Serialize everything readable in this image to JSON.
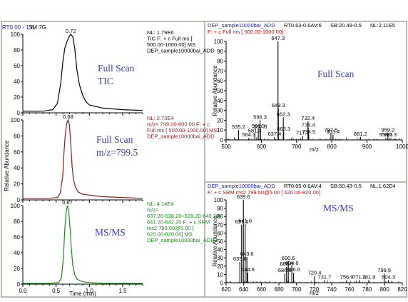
{
  "header": {
    "rt_range": "RT0.00 - 1.8",
    "sm": "SM:7G"
  },
  "colors": {
    "tic": "#000000",
    "xic": "#8b1c1c",
    "srm": "#1e8a1e",
    "annotation": "#3340b0",
    "spec_header": "#1a1aa8",
    "spec_filter": "#cc0000",
    "panel_border": "#9aaa9a"
  },
  "annotations": {
    "tic": [
      "Full Scan",
      "TIC"
    ],
    "xic": [
      "Full Scan",
      "m/z=799.5"
    ],
    "srm": [
      "MS/MS"
    ],
    "spectrum1": "Full Scan",
    "spectrum2": "MS/MS"
  },
  "chart_data": [
    {
      "type": "line",
      "panel": "tic",
      "x": [
        0.0,
        0.3,
        0.45,
        0.52,
        0.57,
        0.6,
        0.63,
        0.66,
        0.69,
        0.72,
        0.75,
        0.78,
        0.81,
        0.85,
        0.9,
        0.95,
        1.0,
        1.2,
        1.5,
        1.8
      ],
      "y": [
        2,
        2,
        4,
        12,
        38,
        64,
        82,
        90,
        96,
        100,
        97,
        82,
        56,
        36,
        22,
        14,
        10,
        6,
        4,
        3
      ],
      "peak_label": "0.72",
      "info": [
        "NL: 1.79E6",
        "TIC F: + c Full ms [",
        "500.00-1000.00]  MS",
        "DEP_sample10000bai_ADD"
      ],
      "xlim": [
        0,
        1.8
      ],
      "ylim": [
        0,
        100
      ],
      "yticks": [
        0,
        20,
        40,
        60,
        80,
        100
      ]
    },
    {
      "type": "line",
      "panel": "xic",
      "x": [
        0.0,
        0.4,
        0.52,
        0.56,
        0.6,
        0.62,
        0.64,
        0.66,
        0.68,
        0.7,
        0.72,
        0.74,
        0.76,
        0.79,
        0.83,
        0.9,
        1.0,
        1.2,
        1.5,
        1.8
      ],
      "y": [
        2,
        2,
        3,
        8,
        30,
        62,
        84,
        96,
        100,
        94,
        70,
        42,
        26,
        16,
        10,
        7,
        6,
        4,
        3,
        2
      ],
      "peak_label": "0.68",
      "info": [
        "NL: 2.73E4",
        "m/z= 799.00-800.00 F: + c",
        "Full ms [ 500.00-1000.00]  MS",
        "DEP_sample10000bai_ADD"
      ],
      "xlim": [
        0,
        1.8
      ],
      "ylim": [
        0,
        100
      ],
      "yticks": [
        0,
        20,
        40,
        60,
        80,
        100
      ],
      "ylabel": "Relative Abundance"
    },
    {
      "type": "line",
      "panel": "srm",
      "x": [
        0.0,
        0.4,
        0.54,
        0.58,
        0.61,
        0.63,
        0.65,
        0.67,
        0.69,
        0.71,
        0.73,
        0.75,
        0.78,
        0.82,
        0.9,
        1.0,
        1.2,
        1.5,
        1.8
      ],
      "y": [
        1,
        1,
        2,
        8,
        34,
        70,
        92,
        100,
        92,
        70,
        44,
        24,
        12,
        6,
        3,
        2,
        1,
        1,
        1
      ],
      "peak_label": "0.67",
      "info": [
        "NL: 4.14E4",
        "m/z=",
        "637.20-638.20+639.20-640.20+",
        "641.20-642.20  F: + c SRM",
        "ms2 799.50@5.00 [",
        "620.00-820.00]  MS",
        "DEP_sample10000bai_ADD"
      ],
      "xlim": [
        0,
        1.8
      ],
      "ylim": [
        0,
        100
      ],
      "yticks": [
        0,
        20,
        40,
        60,
        80,
        100
      ],
      "xticks": [
        "0.0",
        "0.5",
        "1.0",
        "1.5"
      ],
      "xlabel": "Time (min)"
    },
    {
      "type": "bar",
      "panel": "spectrum1",
      "header": "DEP_sample10000bai_ADD",
      "header_rt": "RT0.63-0.6AV:6",
      "header_sb": "SB:20.49-0.5",
      "header_nl": "NL:2.11E5",
      "filter": "F: + c Full ms [ 500.00-1000.00]",
      "ylabel": "Relative Abundance",
      "xlabel": "m/z",
      "xlim": [
        500,
        1000
      ],
      "ylim": [
        0,
        100
      ],
      "xticks": [
        500,
        600,
        700,
        800,
        900,
        1000
      ],
      "yticks": [
        0,
        10,
        20,
        30,
        40,
        50,
        60,
        70,
        80,
        90,
        100
      ],
      "peaks": [
        {
          "mz": 647.3,
          "rel": 100,
          "label": "647.3"
        },
        {
          "mz": 648.3,
          "rel": 32,
          "label": "648.3"
        },
        {
          "mz": 662.3,
          "rel": 23,
          "label": "662.3"
        },
        {
          "mz": 596.3,
          "rel": 20,
          "label": "596.3"
        },
        {
          "mz": 732.4,
          "rel": 19,
          "label": "732.4"
        },
        {
          "mz": 733.4,
          "rel": 12,
          "label": "733.4"
        },
        {
          "mz": 591.3,
          "rel": 11,
          "label": "591.3"
        },
        {
          "mz": 535.2,
          "rel": 10,
          "label": "535.2"
        },
        {
          "mz": 597.3,
          "rel": 10,
          "label": "597.3"
        },
        {
          "mz": 663.3,
          "rel": 8,
          "label": "663.3"
        },
        {
          "mz": 797.5,
          "rel": 7,
          "label": "797.5"
        },
        {
          "mz": 959.2,
          "rel": 7,
          "label": "959.2"
        },
        {
          "mz": 581.3,
          "rel": 6,
          "label": "581.3"
        },
        {
          "mz": 734.5,
          "rel": 5,
          "label": "734.5"
        },
        {
          "mz": 803.4,
          "rel": 5,
          "label": "803.4"
        },
        {
          "mz": 717.4,
          "rel": 4,
          "label": "717.4"
        },
        {
          "mz": 881.2,
          "rel": 3,
          "label": "881.2"
        },
        {
          "mz": 637.4,
          "rel": 3,
          "label": "637.4"
        },
        {
          "mz": 564.3,
          "rel": 2,
          "label": "564.3"
        },
        {
          "mz": 953.2,
          "rel": 2,
          "label": "953.2"
        },
        {
          "mz": 965.3,
          "rel": 2,
          "label": "965.3"
        }
      ]
    },
    {
      "type": "bar",
      "panel": "spectrum2",
      "header": "DEP_sample10000bai_ADD",
      "header_rt": "RT0.65-0.6AV:4",
      "header_sb": "SB:50.43-0.5",
      "header_nl": "NL:1.62E4",
      "filter": "F: + c SRM ms2 799.50@5.00 [ 620.00-820.00]",
      "ylabel": "Relative Abundance",
      "xlabel": "m/z",
      "xlim": [
        620,
        820
      ],
      "ylim": [
        0,
        100
      ],
      "xticks": [
        620,
        640,
        660,
        680,
        700,
        720,
        740,
        760,
        780,
        800,
        820
      ],
      "yticks": [
        0,
        10,
        20,
        30,
        40,
        50,
        60,
        70,
        80,
        90,
        100
      ],
      "peaks": [
        {
          "mz": 639.6,
          "rel": 100,
          "label": "639.6"
        },
        {
          "mz": 641.6,
          "rel": 71,
          "label": "641.6"
        },
        {
          "mz": 637.6,
          "rel": 70,
          "label": "637.6"
        },
        {
          "mz": 643.6,
          "rel": 31,
          "label": "643.6"
        },
        {
          "mz": 690.6,
          "rel": 26,
          "label": "690.6"
        },
        {
          "mz": 635.6,
          "rel": 25,
          "label": "635.6"
        },
        {
          "mz": 694.6,
          "rel": 20,
          "label": "694.6"
        },
        {
          "mz": 688.6,
          "rel": 19,
          "label": "688.6"
        },
        {
          "mz": 644.6,
          "rel": 12,
          "label": "644.6"
        },
        {
          "mz": 696.6,
          "rel": 12,
          "label": "696.6"
        },
        {
          "mz": 799.5,
          "rel": 11,
          "label": "799.5"
        },
        {
          "mz": 686.6,
          "rel": 11,
          "label": "686.6"
        },
        {
          "mz": 720.4,
          "rel": 8,
          "label": "720.4"
        },
        {
          "mz": 731.7,
          "rel": 3,
          "label": "731.7"
        },
        {
          "mz": 756.9,
          "rel": 3,
          "label": "756.9"
        },
        {
          "mz": 771.1,
          "rel": 3,
          "label": "771.1"
        },
        {
          "mz": 781.9,
          "rel": 3,
          "label": "781.9"
        },
        {
          "mz": 804.3,
          "rel": 3,
          "label": "804.3"
        }
      ]
    }
  ]
}
